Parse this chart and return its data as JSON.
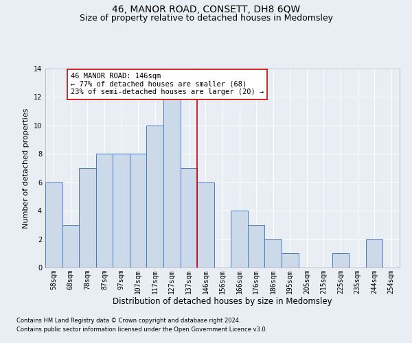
{
  "title": "46, MANOR ROAD, CONSETT, DH8 6QW",
  "subtitle": "Size of property relative to detached houses in Medomsley",
  "xlabel": "Distribution of detached houses by size in Medomsley",
  "ylabel": "Number of detached properties",
  "footnote1": "Contains HM Land Registry data © Crown copyright and database right 2024.",
  "footnote2": "Contains public sector information licensed under the Open Government Licence v3.0.",
  "bins": [
    "58sqm",
    "68sqm",
    "78sqm",
    "87sqm",
    "97sqm",
    "107sqm",
    "117sqm",
    "127sqm",
    "137sqm",
    "146sqm",
    "156sqm",
    "166sqm",
    "176sqm",
    "186sqm",
    "195sqm",
    "205sqm",
    "215sqm",
    "225sqm",
    "235sqm",
    "244sqm",
    "254sqm"
  ],
  "values": [
    6,
    3,
    7,
    8,
    8,
    8,
    10,
    12,
    7,
    6,
    0,
    4,
    3,
    2,
    1,
    0,
    0,
    1,
    0,
    2,
    0
  ],
  "bar_color": "#ccd9e8",
  "bar_edge_color": "#4a7abf",
  "vline_color": "#cc0000",
  "annotation_text": "46 MANOR ROAD: 146sqm\n← 77% of detached houses are smaller (68)\n23% of semi-detached houses are larger (20) →",
  "annotation_box_color": "#ffffff",
  "annotation_box_edge": "#cc0000",
  "ylim": [
    0,
    14
  ],
  "yticks": [
    0,
    2,
    4,
    6,
    8,
    10,
    12,
    14
  ],
  "background_color": "#e8eef4",
  "grid_color": "#ffffff",
  "title_fontsize": 10,
  "subtitle_fontsize": 9,
  "xlabel_fontsize": 8.5,
  "ylabel_fontsize": 8,
  "tick_fontsize": 7,
  "annotation_fontsize": 7.5,
  "footnote_fontsize": 6
}
